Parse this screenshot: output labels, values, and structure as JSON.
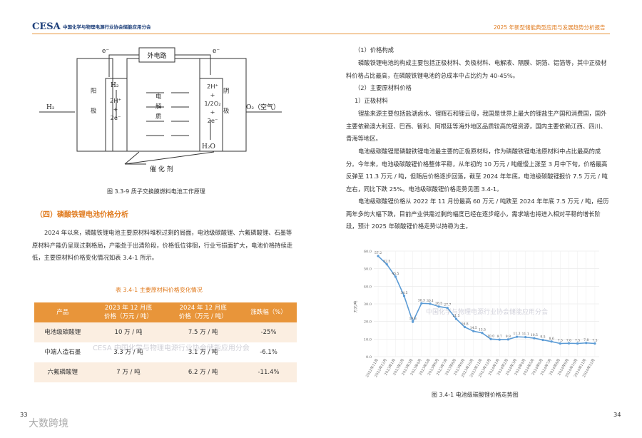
{
  "header": {
    "logo": "CESA",
    "org": "中国化学与物理电源行业协会储能应用分会",
    "report": "2025 年新型储能典型应用与发展趋势分析报告"
  },
  "left_page": {
    "diagram": {
      "external_circuit": "外电路",
      "electron_left": "e⁻",
      "electron_right": "e⁻",
      "anode": "阳\n\n极",
      "cathode": "阴\n\n极",
      "h2_in": "H₂",
      "h2": "H₂",
      "anode_reaction": "2H⁺\n+\n2e⁻",
      "electrolyte": "电\n解\n质",
      "cathode_reaction": "2H⁺\n+\n1/2O₂\n+\n2e⁻",
      "water": "H₂O",
      "o2_in": "O₂（空气）",
      "catalyst": "催 化 剂"
    },
    "diagram_caption": "图 3.3-9 质子交换膜燃料电池工作原理",
    "section_title": "（四）磷酸铁锂电池价格分析",
    "paragraph": "2024 年以来，磷酸铁锂电池主要原材料堆积过剩的局面，电池级碳酸锂、六氟磷酸锂、石墨等原材料产能仍呈现过剩格局，产能处于出清阶段，价格低位徘徊，行业亏损面扩大，电池价格持续走低，主要原材料价格变化情况如表 3.4-1 所示。",
    "table": {
      "title": "表 3.4-1 主要原材料价格变化情况",
      "headers": [
        "产品",
        "2023 年 12 月底\n价格（万元 / 吨）",
        "2024 年 12 月底\n价格（万元 / 吨）",
        "涨跌幅（%）"
      ],
      "rows": [
        [
          "电池级碳酸锂",
          "10 万 / 吨",
          "7.5 万 / 吨",
          "-25%"
        ],
        [
          "中端人造石墨",
          "3.3 万 / 吨",
          "3.1 万 / 吨",
          "-6.1%"
        ],
        [
          "六氟磷酸锂",
          "7 万 / 吨",
          "6.2 万 / 吨",
          "-11.4%"
        ]
      ],
      "watermark": "CESA 中国化学与物理电源行业协会储能应用分会"
    },
    "page_number": "33"
  },
  "right_page": {
    "h1": "（1）价格构成",
    "p1": "磷酸铁锂电池的构成主要包括正极材料、负极材料、电解液、隔膜、铜箔、铝箔等，其中正极材料价格占比最高，在磷酸铁锂电池的总成本中占比约为 40-45%。",
    "h2": "（2）主要原材料价格",
    "h3": "1）正极材料",
    "p2": "锂盐来源主要包括盐湖卤水、锂辉石和锂云母，我国是世界上最大的锂盐生产国和消费国，国外主要依赖澳大利亚、巴西、智利、阿根廷等海外地区品质较高的锂资源，国内主要依赖江西、四川、青海等地区。",
    "p3": "电池级碳酸锂是磷酸铁锂电池最主要的正极原材料，作为磷酸铁锂电池原材料中占比最高的成分。今年来，电池级碳酸锂价格整体平稳，从年初的 10 万元 / 吨缓慢上涨至 3 月中下旬，价格最高反弹至 11.3 万元 / 吨，但随后价格逐步回落，截至 2024 年年底，电池级碳酸锂报价 7.5 万元 / 吨左右，同比下跌 25%。电池级碳酸锂价格走势见图 3.4-1。",
    "p4": "电池级碳酸锂价格从 2022 年 11 月份最高 60 万元 / 吨跌至 2024 年年底 7.5 万元 / 吨，经历两年多的大幅下跌，目前产业供需过剩的幅度已经在逐步缩小，需求端也将进入相对平稳的增长阶段，预计 2025 年碳酸锂价格走势以持稳为主。",
    "chart_caption": "图 3.4-1 电池级碳酸锂价格走势图",
    "page_number": "34"
  },
  "chart_data": {
    "type": "line",
    "y_label": "万元/吨",
    "watermark": "中国化学与物理电源行业协会储能应用分会",
    "color": "#5b9bd5",
    "categories": [
      "2022年11月",
      "2022年12月",
      "2023年1月",
      "2023年2月",
      "2023年3月",
      "2023年4月",
      "2023年5月",
      "2023年6月",
      "2023年7月",
      "2023年8月",
      "2023年9月",
      "2023年10月",
      "2023年11月",
      "2023年12月",
      "2024年1月",
      "2024年2月",
      "2024年3月",
      "2024年4月",
      "2024年5月",
      "2024年6月",
      "2024年7月",
      "2024年8月",
      "2024年9月",
      "2024年10月",
      "2024年11月",
      "2024年12月"
    ],
    "values": [
      57.2,
      52.5,
      45.5,
      34.5,
      19.8,
      30.3,
      30.1,
      28.5,
      27.7,
      21.5,
      16.8,
      14.5,
      13.5,
      10.0,
      9.7,
      9.8,
      11.3,
      11.1,
      10.5,
      9.5,
      8.6,
      7.5,
      7.6,
      7.5,
      7.8,
      7.5
    ],
    "value_labels": [
      "57.2",
      "52.5",
      "45.5",
      "34.5",
      "19.8",
      "30.3",
      "30.1",
      "28.5",
      "27.7",
      "21.5",
      "16.8",
      "14.5",
      "13.5",
      "10.0",
      "9.7",
      "9.8",
      "11.3",
      "11.1",
      "10.5",
      "9.5",
      "8.6",
      "7.5",
      "7.6",
      "7.5",
      "7.8",
      "7.5"
    ],
    "ylim": [
      0,
      60
    ],
    "yticks": [
      {
        "value": 0,
        "label": "0.0"
      },
      {
        "value": 10,
        "label": "10.0"
      },
      {
        "value": 20,
        "label": "20.0"
      },
      {
        "value": 30,
        "label": "30.0"
      },
      {
        "value": 40,
        "label": "40.0"
      },
      {
        "value": 50,
        "label": "50.0"
      },
      {
        "value": 60,
        "label": "60.0"
      }
    ],
    "grid": true
  },
  "watermark": "大数跨境"
}
